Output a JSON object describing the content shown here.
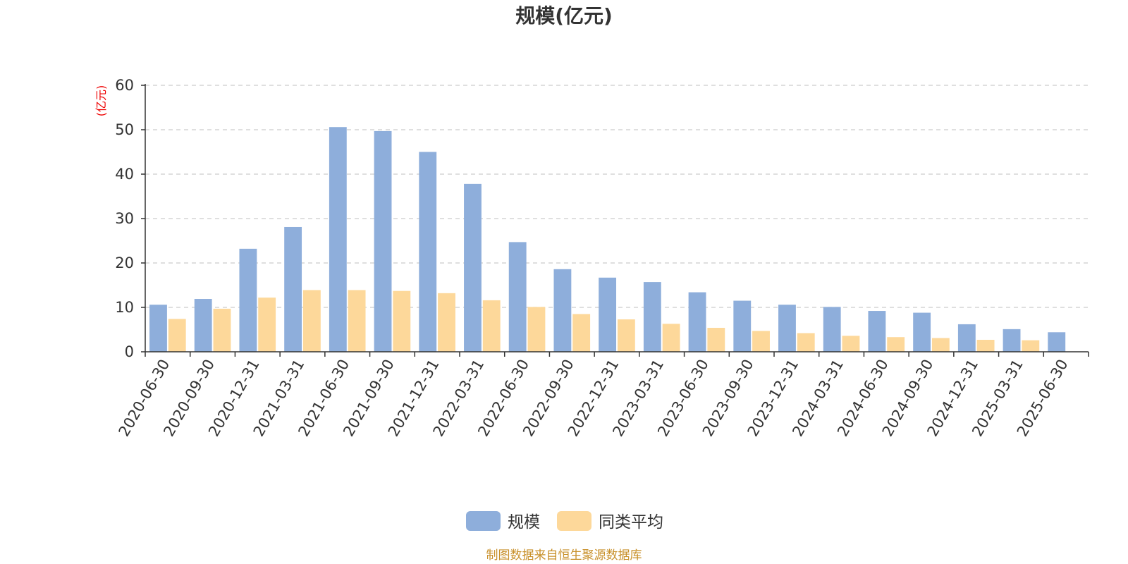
{
  "chart_data": {
    "type": "bar",
    "title": "规模(亿元)",
    "ylabel": "(亿元)",
    "ylim": [
      0,
      60
    ],
    "yticks": [
      0,
      10,
      20,
      30,
      40,
      50,
      60
    ],
    "grid": true,
    "legend_position": "bottom",
    "categories": [
      "2020-06-30",
      "2020-09-30",
      "2020-12-31",
      "2021-03-31",
      "2021-06-30",
      "2021-09-30",
      "2021-12-31",
      "2022-03-31",
      "2022-06-30",
      "2022-09-30",
      "2022-12-31",
      "2023-03-31",
      "2023-06-30",
      "2023-09-30",
      "2023-12-31",
      "2024-03-31",
      "2024-06-30",
      "2024-09-30",
      "2024-12-31",
      "2025-03-31",
      "2025-06-30"
    ],
    "series": [
      {
        "name": "规模",
        "color": "#8eaedb",
        "values": [
          10.6,
          11.9,
          23.2,
          28.1,
          50.6,
          49.7,
          45.0,
          37.8,
          24.7,
          18.6,
          16.7,
          15.7,
          13.4,
          11.5,
          10.6,
          10.1,
          9.2,
          8.8,
          6.2,
          5.1,
          4.4
        ]
      },
      {
        "name": "同类平均",
        "color": "#fdd89a",
        "values": [
          7.4,
          9.7,
          12.2,
          13.9,
          13.9,
          13.7,
          13.2,
          11.6,
          10.1,
          8.5,
          7.3,
          6.3,
          5.4,
          4.7,
          4.2,
          3.6,
          3.3,
          3.1,
          2.7,
          2.6,
          null
        ]
      }
    ],
    "source": "制图数据来自恒生聚源数据库",
    "unit_color": "#ee0000",
    "source_color": "#c8902a",
    "axis_color": "#333333",
    "grid_color": "#cccccc"
  }
}
